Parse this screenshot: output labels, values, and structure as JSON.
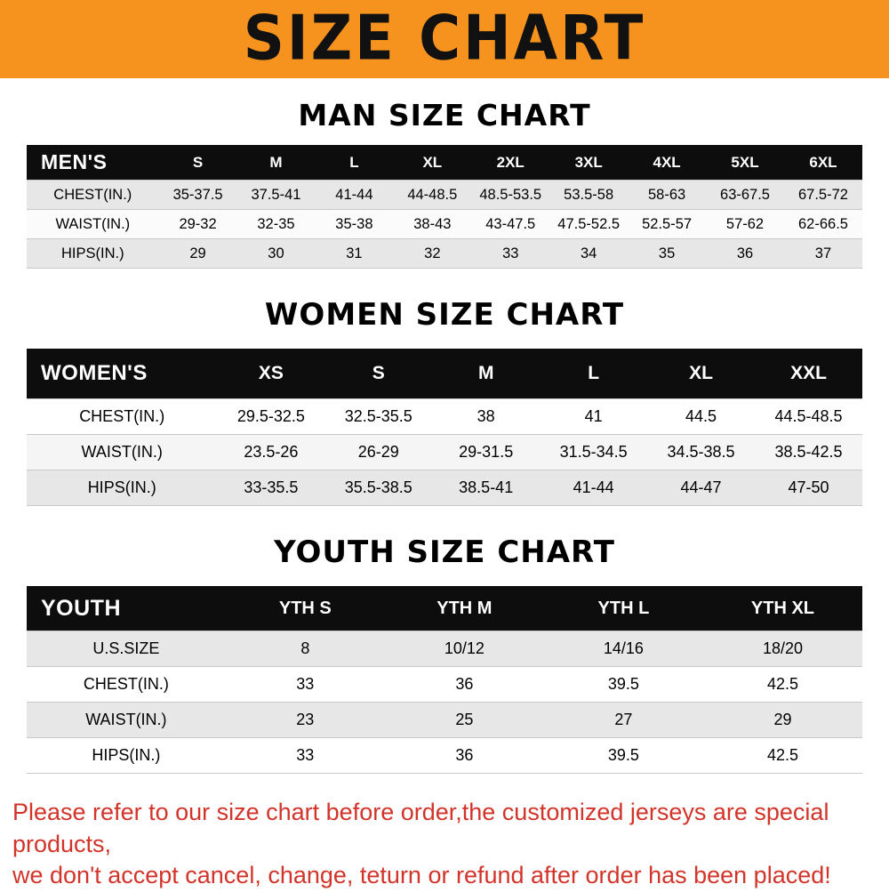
{
  "banner": {
    "title": "SIZE CHART"
  },
  "colors": {
    "banner_orange": "#f6921e",
    "table_header_black": "#0d0d0d",
    "shaded_row_gray": "#e7e7e7",
    "notice_red": "#d2342a"
  },
  "sections": [
    {
      "id": "men",
      "heading": "MAN SIZE CHART",
      "table": {
        "header_label": "MEN'S",
        "columns": [
          "S",
          "M",
          "L",
          "XL",
          "2XL",
          "3XL",
          "4XL",
          "5XL",
          "6XL"
        ],
        "rows": [
          {
            "label": "CHEST(IN.)",
            "values": [
              "35-37.5",
              "37.5-41",
              "41-44",
              "44-48.5",
              "48.5-53.5",
              "53.5-58",
              "58-63",
              "63-67.5",
              "67.5-72"
            ]
          },
          {
            "label": "WAIST(IN.)",
            "values": [
              "29-32",
              "32-35",
              "35-38",
              "38-43",
              "43-47.5",
              "47.5-52.5",
              "52.5-57",
              "57-62",
              "62-66.5"
            ]
          },
          {
            "label": "HIPS(IN.)",
            "values": [
              "29",
              "30",
              "31",
              "32",
              "33",
              "34",
              "35",
              "36",
              "37"
            ]
          }
        ]
      }
    },
    {
      "id": "women",
      "heading": "WOMEN SIZE CHART",
      "table": {
        "header_label": "WOMEN'S",
        "columns": [
          "XS",
          "S",
          "M",
          "L",
          "XL",
          "XXL"
        ],
        "rows": [
          {
            "label": "CHEST(IN.)",
            "values": [
              "29.5-32.5",
              "32.5-35.5",
              "38",
              "41",
              "44.5",
              "44.5-48.5"
            ]
          },
          {
            "label": "WAIST(IN.)",
            "values": [
              "23.5-26",
              "26-29",
              "29-31.5",
              "31.5-34.5",
              "34.5-38.5",
              "38.5-42.5"
            ]
          },
          {
            "label": "HIPS(IN.)",
            "values": [
              "33-35.5",
              "35.5-38.5",
              "38.5-41",
              "41-44",
              "44-47",
              "47-50"
            ]
          }
        ]
      }
    },
    {
      "id": "youth",
      "heading": "YOUTH SIZE CHART",
      "table": {
        "header_label": "YOUTH",
        "columns": [
          "YTH S",
          "YTH M",
          "YTH L",
          "YTH XL"
        ],
        "rows": [
          {
            "label": "U.S.SIZE",
            "values": [
              "8",
              "10/12",
              "14/16",
              "18/20"
            ]
          },
          {
            "label": "CHEST(IN.)",
            "values": [
              "33",
              "36",
              "39.5",
              "42.5"
            ]
          },
          {
            "label": "WAIST(IN.)",
            "values": [
              "23",
              "25",
              "27",
              "29"
            ]
          },
          {
            "label": "HIPS(IN.)",
            "values": [
              "33",
              "36",
              "39.5",
              "42.5"
            ]
          }
        ]
      }
    }
  ],
  "footer": {
    "line1": "Please refer to our size chart before order,the customized jerseys are special products,",
    "line2": "we don't accept cancel, change, teturn or refund after order has been placed!"
  }
}
